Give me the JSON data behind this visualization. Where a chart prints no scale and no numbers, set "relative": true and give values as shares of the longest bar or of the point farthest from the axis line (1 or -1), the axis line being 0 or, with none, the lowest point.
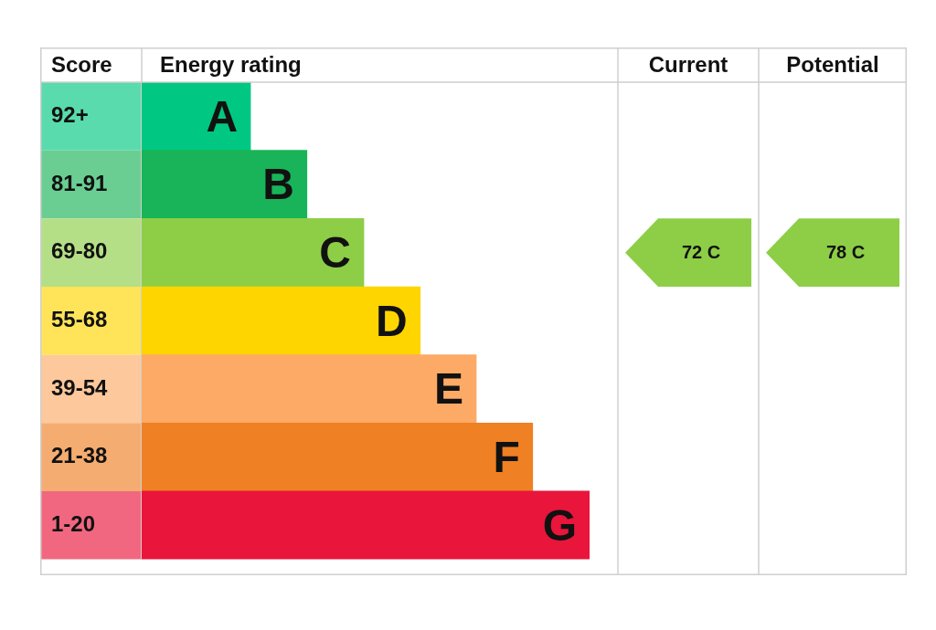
{
  "chart_data": {
    "type": "bar",
    "orientation": "horizontal",
    "relative": true,
    "ylabel": "Score",
    "xlabel": "Energy rating",
    "categories": [
      "92+",
      "81-91",
      "69-80",
      "55-68",
      "39-54",
      "21-38",
      "1-20"
    ],
    "values": [
      0.243,
      0.369,
      0.496,
      0.622,
      0.747,
      0.873,
      1
    ],
    "colors": [
      "#00c781",
      "#19b459",
      "#8dce46",
      "#ffd500",
      "#fcaa65",
      "#ef8023",
      "#e9153b"
    ],
    "annotations": [
      {
        "text": "A",
        "x": 0.243,
        "y": "92+"
      },
      {
        "text": "B",
        "x": 0.369,
        "y": "81-91"
      },
      {
        "text": "C",
        "x": 0.496,
        "y": "69-80"
      },
      {
        "text": "D",
        "x": 0.622,
        "y": "55-68"
      },
      {
        "text": "E",
        "x": 0.747,
        "y": "39-54"
      },
      {
        "text": "F",
        "x": 0.873,
        "y": "21-38"
      },
      {
        "text": "G",
        "x": 1,
        "y": "1-20"
      },
      "Current",
      "Potential",
      "72 C",
      "78 C"
    ],
    "tick_labels": "y"
  }
}
